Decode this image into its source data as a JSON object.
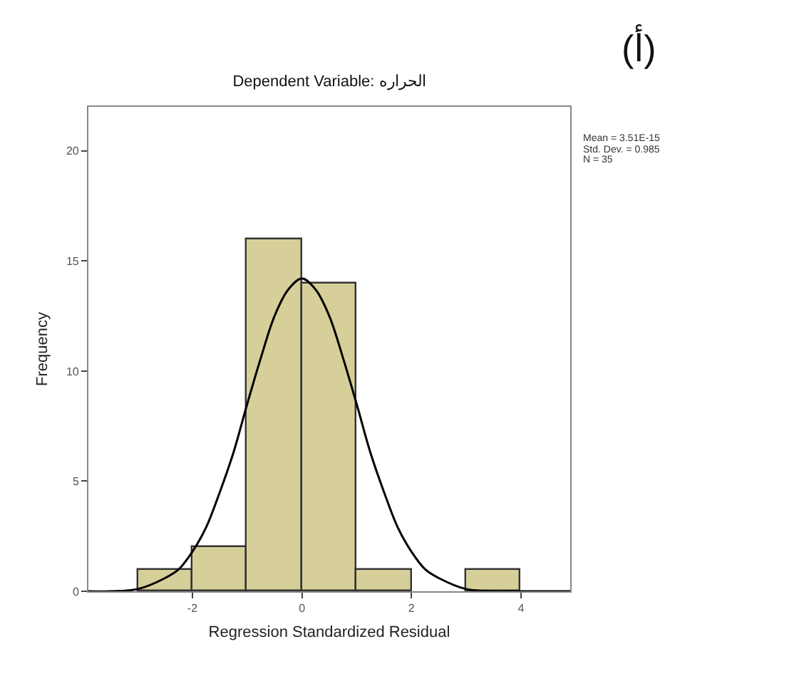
{
  "chart_data": {
    "type": "histogram",
    "title": "Dependent Variable: الحراره",
    "xlabel": "Regression Standardized Residual",
    "ylabel": "Frequency",
    "bins": [
      -3,
      -2,
      -1,
      0,
      1,
      2,
      3,
      4
    ],
    "series": [
      {
        "color": "#d6cf9a",
        "values": [
          1,
          2,
          16,
          14,
          1,
          0,
          1
        ]
      },
      {
        "type": "line",
        "color": "#000000",
        "x": [
          -3.9,
          -3.5,
          -3,
          -2.5,
          -2.25,
          -2,
          -1.75,
          -1.5,
          -1.25,
          -1,
          -0.75,
          -0.5,
          -0.25,
          0,
          0.25,
          0.5,
          0.75,
          1,
          1.25,
          1.5,
          1.75,
          2,
          2.25,
          2.5,
          3,
          3.5,
          4,
          4.9
        ],
        "values": [
          0,
          0,
          0.1,
          0.6,
          1.0,
          1.8,
          2.9,
          4.5,
          6.3,
          8.5,
          10.6,
          12.5,
          13.7,
          14.2,
          13.7,
          12.5,
          10.6,
          8.5,
          6.3,
          4.5,
          2.9,
          1.8,
          1.0,
          0.6,
          0.1,
          0,
          0,
          0
        ]
      }
    ],
    "xlim": [
      -3.9,
      4.9
    ],
    "xticks": [
      -2,
      0,
      2,
      4
    ],
    "ylim": [
      0,
      22
    ],
    "yticks": [
      0,
      5,
      10,
      15,
      20
    ],
    "marker": "none",
    "line_style": "solid",
    "annotations": [
      "(أ)",
      "Mean = 3.51E-15",
      "Std. Dev. = 0.985",
      "N = 35"
    ]
  }
}
